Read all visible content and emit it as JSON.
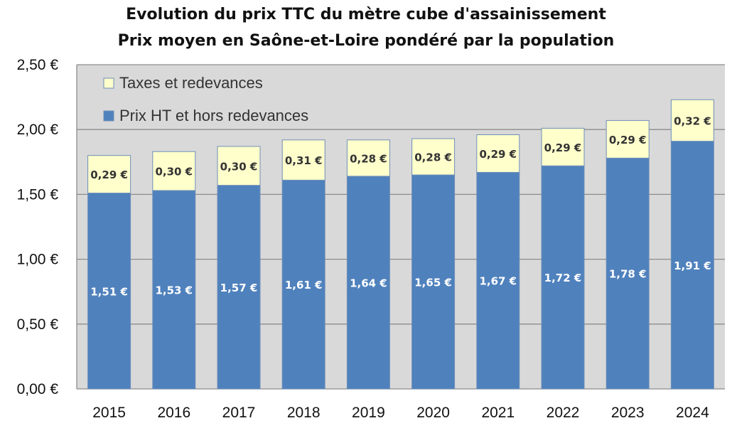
{
  "chart_data": {
    "type": "bar",
    "stacked": true,
    "title": "Evolution du prix TTC du mètre cube d'assainissement",
    "subtitle": "Prix moyen en Saône-et-Loire pondéré par la population",
    "categories": [
      "2015",
      "2016",
      "2017",
      "2018",
      "2019",
      "2020",
      "2021",
      "2022",
      "2023",
      "2024"
    ],
    "series": [
      {
        "name": "Prix HT et hors redevances",
        "color": "#4f81bd",
        "label_color": "#ffffff",
        "values": [
          1.51,
          1.53,
          1.57,
          1.61,
          1.64,
          1.65,
          1.67,
          1.72,
          1.78,
          1.91
        ],
        "labels": [
          "1,51 €",
          "1,53 €",
          "1,57 €",
          "1,61 €",
          "1,64 €",
          "1,65 €",
          "1,67 €",
          "1,72 €",
          "1,78 €",
          "1,91 €"
        ]
      },
      {
        "name": "Taxes et redevances",
        "color": "#ffffcc",
        "label_color": "#333333",
        "values": [
          0.29,
          0.3,
          0.3,
          0.31,
          0.28,
          0.28,
          0.29,
          0.29,
          0.29,
          0.32
        ],
        "labels": [
          "0,29 €",
          "0,30 €",
          "0,30 €",
          "0,31 €",
          "0,28 €",
          "0,28 €",
          "0,29 €",
          "0,29 €",
          "0,29 €",
          "0,32 €"
        ]
      }
    ],
    "ylim": [
      0,
      2.5
    ],
    "yticks": [
      0,
      0.5,
      1.0,
      1.5,
      2.0,
      2.5
    ],
    "ytick_labels": [
      "0,00 €",
      "0,50 €",
      "1,00 €",
      "1,50 €",
      "2,00 €",
      "2,50 €"
    ],
    "grid": true,
    "plot_background": "#d9d9d9",
    "legend_position": "top-left inside"
  }
}
